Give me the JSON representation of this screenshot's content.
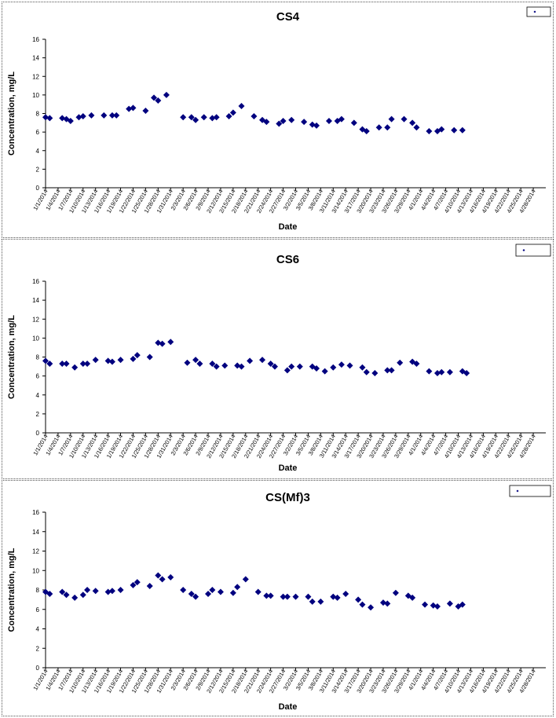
{
  "chart_data": [
    {
      "type": "scatter",
      "title": "CS4",
      "xlabel": "Date",
      "ylabel": "Concentration, mg/L",
      "ylim": [
        0,
        16
      ],
      "yticks": [
        0,
        2,
        4,
        6,
        8,
        10,
        12,
        14,
        16
      ],
      "grid": false,
      "legend_placement": "top-right",
      "marker_color": "#00007F",
      "x_tick_labels": [
        "1/1/2014",
        "1/4/2014",
        "1/7/2014",
        "1/10/2014",
        "1/13/2014",
        "1/16/2014",
        "1/19/2014",
        "1/22/2014",
        "1/25/2014",
        "1/28/2014",
        "1/31/2014",
        "2/3/2014",
        "2/6/2014",
        "2/9/2014",
        "2/12/2014",
        "2/15/2014",
        "2/18/2014",
        "2/21/2014",
        "2/24/2014",
        "2/27/2014",
        "3/2/2014",
        "3/5/2014",
        "3/8/2014",
        "3/11/2014",
        "3/14/2014",
        "3/17/2014",
        "3/20/2014",
        "3/23/2014",
        "3/26/2014",
        "3/29/2014",
        "4/1/2014",
        "4/4/2014",
        "4/7/2014",
        "4/10/2014",
        "4/13/2014",
        "4/16/2014",
        "4/19/2014",
        "4/22/2014",
        "4/25/2014",
        "4/28/2014"
      ],
      "series": [
        {
          "name": "",
          "points": [
            {
              "x": "1/1/2014",
              "y": 7.6
            },
            {
              "x": "1/2/2014",
              "y": 7.5
            },
            {
              "x": "1/5/2014",
              "y": 7.5
            },
            {
              "x": "1/6/2014",
              "y": 7.4
            },
            {
              "x": "1/7/2014",
              "y": 7.2
            },
            {
              "x": "1/9/2014",
              "y": 7.6
            },
            {
              "x": "1/10/2014",
              "y": 7.7
            },
            {
              "x": "1/12/2014",
              "y": 7.8
            },
            {
              "x": "1/15/2014",
              "y": 7.8
            },
            {
              "x": "1/17/2014",
              "y": 7.8
            },
            {
              "x": "1/18/2014",
              "y": 7.8
            },
            {
              "x": "1/21/2014",
              "y": 8.5
            },
            {
              "x": "1/22/2014",
              "y": 8.6
            },
            {
              "x": "1/25/2014",
              "y": 8.3
            },
            {
              "x": "1/27/2014",
              "y": 9.7
            },
            {
              "x": "1/28/2014",
              "y": 9.4
            },
            {
              "x": "1/30/2014",
              "y": 10.0
            },
            {
              "x": "2/3/2014",
              "y": 7.6
            },
            {
              "x": "2/5/2014",
              "y": 7.6
            },
            {
              "x": "2/6/2014",
              "y": 7.3
            },
            {
              "x": "2/8/2014",
              "y": 7.6
            },
            {
              "x": "2/10/2014",
              "y": 7.5
            },
            {
              "x": "2/11/2014",
              "y": 7.6
            },
            {
              "x": "2/14/2014",
              "y": 7.7
            },
            {
              "x": "2/15/2014",
              "y": 8.1
            },
            {
              "x": "2/17/2014",
              "y": 8.8
            },
            {
              "x": "2/20/2014",
              "y": 7.7
            },
            {
              "x": "2/22/2014",
              "y": 7.3
            },
            {
              "x": "2/23/2014",
              "y": 7.1
            },
            {
              "x": "2/26/2014",
              "y": 6.9
            },
            {
              "x": "2/27/2014",
              "y": 7.2
            },
            {
              "x": "3/1/2014",
              "y": 7.3
            },
            {
              "x": "3/4/2014",
              "y": 7.1
            },
            {
              "x": "3/6/2014",
              "y": 6.8
            },
            {
              "x": "3/7/2014",
              "y": 6.7
            },
            {
              "x": "3/10/2014",
              "y": 7.2
            },
            {
              "x": "3/12/2014",
              "y": 7.2
            },
            {
              "x": "3/13/2014",
              "y": 7.4
            },
            {
              "x": "3/16/2014",
              "y": 7.0
            },
            {
              "x": "3/18/2014",
              "y": 6.3
            },
            {
              "x": "3/19/2014",
              "y": 6.1
            },
            {
              "x": "3/22/2014",
              "y": 6.5
            },
            {
              "x": "3/24/2014",
              "y": 6.5
            },
            {
              "x": "3/25/2014",
              "y": 7.4
            },
            {
              "x": "3/28/2014",
              "y": 7.4
            },
            {
              "x": "3/30/2014",
              "y": 7.0
            },
            {
              "x": "3/31/2014",
              "y": 6.5
            },
            {
              "x": "4/3/2014",
              "y": 6.1
            },
            {
              "x": "4/5/2014",
              "y": 6.1
            },
            {
              "x": "4/6/2014",
              "y": 6.3
            },
            {
              "x": "4/9/2014",
              "y": 6.2
            },
            {
              "x": "4/11/2014",
              "y": 6.2
            }
          ]
        }
      ]
    },
    {
      "type": "scatter",
      "title": "CS6",
      "xlabel": "Date",
      "ylabel": "Concentration, mg/L",
      "ylim": [
        0,
        16
      ],
      "yticks": [
        0,
        2,
        4,
        6,
        8,
        10,
        12,
        14,
        16
      ],
      "grid": false,
      "legend_placement": "top-right",
      "marker_color": "#00007F",
      "x_tick_labels": [
        "1/1/2014",
        "1/4/2014",
        "1/7/2014",
        "1/10/2014",
        "1/13/2014",
        "1/16/2014",
        "1/19/2014",
        "1/22/2014",
        "1/25/2014",
        "1/28/2014",
        "1/31/2014",
        "2/3/2014",
        "2/6/2014",
        "2/9/2014",
        "2/12/2014",
        "2/15/2014",
        "2/18/2014",
        "2/21/2014",
        "2/24/2014",
        "2/27/2014",
        "3/2/2014",
        "3/5/2014",
        "3/8/2014",
        "3/11/2014",
        "3/14/2014",
        "3/17/2014",
        "3/20/2014",
        "3/23/2014",
        "3/26/2014",
        "3/29/2014",
        "4/1/2014",
        "4/4/2014",
        "4/7/2014",
        "4/10/2014",
        "4/13/2014",
        "4/16/2014",
        "4/19/2014",
        "4/22/2014",
        "4/25/2014",
        "4/28/2014"
      ],
      "series": [
        {
          "name": "",
          "points": [
            {
              "x": "1/1/2014",
              "y": 7.6
            },
            {
              "x": "1/2/2014",
              "y": 7.3
            },
            {
              "x": "1/5/2014",
              "y": 7.3
            },
            {
              "x": "1/6/2014",
              "y": 7.3
            },
            {
              "x": "1/8/2014",
              "y": 6.9
            },
            {
              "x": "1/10/2014",
              "y": 7.3
            },
            {
              "x": "1/11/2014",
              "y": 7.3
            },
            {
              "x": "1/13/2014",
              "y": 7.7
            },
            {
              "x": "1/16/2014",
              "y": 7.6
            },
            {
              "x": "1/17/2014",
              "y": 7.5
            },
            {
              "x": "1/19/2014",
              "y": 7.7
            },
            {
              "x": "1/22/2014",
              "y": 7.8
            },
            {
              "x": "1/23/2014",
              "y": 8.2
            },
            {
              "x": "1/26/2014",
              "y": 8.0
            },
            {
              "x": "1/28/2014",
              "y": 9.5
            },
            {
              "x": "1/29/2014",
              "y": 9.4
            },
            {
              "x": "1/31/2014",
              "y": 9.6
            },
            {
              "x": "2/4/2014",
              "y": 7.4
            },
            {
              "x": "2/6/2014",
              "y": 7.7
            },
            {
              "x": "2/7/2014",
              "y": 7.3
            },
            {
              "x": "2/10/2014",
              "y": 7.3
            },
            {
              "x": "2/11/2014",
              "y": 7.0
            },
            {
              "x": "2/13/2014",
              "y": 7.1
            },
            {
              "x": "2/16/2014",
              "y": 7.1
            },
            {
              "x": "2/17/2014",
              "y": 7.0
            },
            {
              "x": "2/19/2014",
              "y": 7.6
            },
            {
              "x": "2/22/2014",
              "y": 7.7
            },
            {
              "x": "2/24/2014",
              "y": 7.3
            },
            {
              "x": "2/25/2014",
              "y": 7.0
            },
            {
              "x": "2/28/2014",
              "y": 6.6
            },
            {
              "x": "3/1/2014",
              "y": 7.0
            },
            {
              "x": "3/3/2014",
              "y": 7.0
            },
            {
              "x": "3/6/2014",
              "y": 7.0
            },
            {
              "x": "3/7/2014",
              "y": 6.8
            },
            {
              "x": "3/9/2014",
              "y": 6.5
            },
            {
              "x": "3/11/2014",
              "y": 6.9
            },
            {
              "x": "3/13/2014",
              "y": 7.2
            },
            {
              "x": "3/15/2014",
              "y": 7.1
            },
            {
              "x": "3/18/2014",
              "y": 6.9
            },
            {
              "x": "3/19/2014",
              "y": 6.4
            },
            {
              "x": "3/21/2014",
              "y": 6.3
            },
            {
              "x": "3/24/2014",
              "y": 6.6
            },
            {
              "x": "3/25/2014",
              "y": 6.6
            },
            {
              "x": "3/27/2014",
              "y": 7.4
            },
            {
              "x": "3/30/2014",
              "y": 7.5
            },
            {
              "x": "3/31/2014",
              "y": 7.3
            },
            {
              "x": "4/3/2014",
              "y": 6.5
            },
            {
              "x": "4/5/2014",
              "y": 6.3
            },
            {
              "x": "4/6/2014",
              "y": 6.4
            },
            {
              "x": "4/8/2014",
              "y": 6.4
            },
            {
              "x": "4/11/2014",
              "y": 6.5
            },
            {
              "x": "4/12/2014",
              "y": 6.3
            }
          ]
        }
      ]
    },
    {
      "type": "scatter",
      "title": "CS(Mf)3",
      "xlabel": "Date",
      "ylabel": "Concentration, mg/L",
      "ylim": [
        0,
        16
      ],
      "yticks": [
        0,
        2,
        4,
        6,
        8,
        10,
        12,
        14,
        16
      ],
      "grid": false,
      "legend_placement": "top-right",
      "marker_color": "#00007F",
      "x_tick_labels": [
        "1/1/2014",
        "1/4/2014",
        "1/7/2014",
        "1/10/2014",
        "1/13/2014",
        "1/16/2014",
        "1/19/2014",
        "1/22/2014",
        "1/25/2014",
        "1/28/2014",
        "1/31/2014",
        "2/3/2014",
        "2/6/2014",
        "2/9/2014",
        "2/12/2014",
        "2/15/2014",
        "2/18/2014",
        "2/21/2014",
        "2/24/2014",
        "2/27/2014",
        "3/2/2014",
        "3/5/2014",
        "3/8/2014",
        "3/11/2014",
        "3/14/2014",
        "3/17/2014",
        "3/20/2014",
        "3/23/2014",
        "3/26/2014",
        "3/29/2014",
        "4/1/2014",
        "4/4/2014",
        "4/7/2014",
        "4/10/2014",
        "4/13/2014",
        "4/16/2014",
        "4/19/2014",
        "4/22/2014",
        "4/25/2014",
        "4/28/2014"
      ],
      "series": [
        {
          "name": "",
          "points": [
            {
              "x": "1/1/2014",
              "y": 7.8
            },
            {
              "x": "1/2/2014",
              "y": 7.6
            },
            {
              "x": "1/5/2014",
              "y": 7.8
            },
            {
              "x": "1/6/2014",
              "y": 7.5
            },
            {
              "x": "1/8/2014",
              "y": 7.2
            },
            {
              "x": "1/10/2014",
              "y": 7.5
            },
            {
              "x": "1/11/2014",
              "y": 8.0
            },
            {
              "x": "1/13/2014",
              "y": 7.9
            },
            {
              "x": "1/16/2014",
              "y": 7.8
            },
            {
              "x": "1/17/2014",
              "y": 7.9
            },
            {
              "x": "1/19/2014",
              "y": 8.0
            },
            {
              "x": "1/22/2014",
              "y": 8.5
            },
            {
              "x": "1/23/2014",
              "y": 8.8
            },
            {
              "x": "1/26/2014",
              "y": 8.4
            },
            {
              "x": "1/28/2014",
              "y": 9.5
            },
            {
              "x": "1/29/2014",
              "y": 9.1
            },
            {
              "x": "1/31/2014",
              "y": 9.3
            },
            {
              "x": "2/3/2014",
              "y": 8.0
            },
            {
              "x": "2/5/2014",
              "y": 7.6
            },
            {
              "x": "2/6/2014",
              "y": 7.3
            },
            {
              "x": "2/9/2014",
              "y": 7.6
            },
            {
              "x": "2/10/2014",
              "y": 8.0
            },
            {
              "x": "2/12/2014",
              "y": 7.8
            },
            {
              "x": "2/15/2014",
              "y": 7.7
            },
            {
              "x": "2/16/2014",
              "y": 8.3
            },
            {
              "x": "2/18/2014",
              "y": 9.1
            },
            {
              "x": "2/21/2014",
              "y": 7.8
            },
            {
              "x": "2/23/2014",
              "y": 7.4
            },
            {
              "x": "2/24/2014",
              "y": 7.4
            },
            {
              "x": "2/27/2014",
              "y": 7.3
            },
            {
              "x": "2/28/2014",
              "y": 7.3
            },
            {
              "x": "3/2/2014",
              "y": 7.3
            },
            {
              "x": "3/5/2014",
              "y": 7.3
            },
            {
              "x": "3/6/2014",
              "y": 6.8
            },
            {
              "x": "3/8/2014",
              "y": 6.8
            },
            {
              "x": "3/11/2014",
              "y": 7.3
            },
            {
              "x": "3/12/2014",
              "y": 7.2
            },
            {
              "x": "3/14/2014",
              "y": 7.6
            },
            {
              "x": "3/17/2014",
              "y": 7.0
            },
            {
              "x": "3/18/2014",
              "y": 6.5
            },
            {
              "x": "3/20/2014",
              "y": 6.2
            },
            {
              "x": "3/23/2014",
              "y": 6.7
            },
            {
              "x": "3/24/2014",
              "y": 6.6
            },
            {
              "x": "3/26/2014",
              "y": 7.7
            },
            {
              "x": "3/29/2014",
              "y": 7.4
            },
            {
              "x": "3/30/2014",
              "y": 7.2
            },
            {
              "x": "4/2/2014",
              "y": 6.5
            },
            {
              "x": "4/4/2014",
              "y": 6.4
            },
            {
              "x": "4/5/2014",
              "y": 6.3
            },
            {
              "x": "4/8/2014",
              "y": 6.6
            },
            {
              "x": "4/10/2014",
              "y": 6.3
            },
            {
              "x": "4/11/2014",
              "y": 6.5
            }
          ]
        }
      ]
    }
  ]
}
